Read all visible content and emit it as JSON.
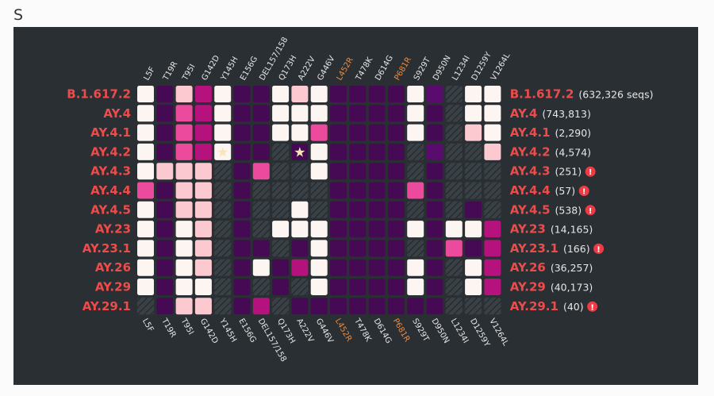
{
  "title": "S",
  "colors": {
    "panel": "#2a2f33",
    "cell_levels": [
      "#fdf5f1",
      "#fbc9cf",
      "#ec4a9d",
      "#b5127e",
      "#460a55",
      "#5a0c6e",
      "#333a3f"
    ],
    "row_label": "#ee4b4b",
    "highlight_mutation": "#f08a3c",
    "warning": "#ee3b45"
  },
  "chart_data": {
    "type": "heatmap",
    "description_levels": "0=very high (near white), 1=high (light pink), 2=medium (pink), 3=medium-low (magenta), 4=low (purple), 5=low alt (purple), 6=not observed (hatched)",
    "mutations": [
      "L5F",
      "T19R",
      "T95I",
      "G142D",
      "Y145H",
      "E156G",
      "DEL157/158",
      "Q173H",
      "A222V",
      "G446V",
      "L452R",
      "T478K",
      "D614G",
      "P681R",
      "S929T",
      "D950N",
      "L1234I",
      "D1259Y",
      "V1264L"
    ],
    "highlighted_mutations": [
      "L452R",
      "P681R"
    ],
    "lineages": [
      {
        "name": "B.1.617.2",
        "count": "(632,326 seqs)",
        "warning": false
      },
      {
        "name": "AY.4",
        "count": "(743,813)",
        "warning": false
      },
      {
        "name": "AY.4.1",
        "count": "(2,290)",
        "warning": false
      },
      {
        "name": "AY.4.2",
        "count": "(4,574)",
        "warning": false
      },
      {
        "name": "AY.4.3",
        "count": "(251)",
        "warning": true
      },
      {
        "name": "AY.4.4",
        "count": "(57)",
        "warning": true
      },
      {
        "name": "AY.4.5",
        "count": "(538)",
        "warning": true
      },
      {
        "name": "AY.23",
        "count": "(14,165)",
        "warning": false
      },
      {
        "name": "AY.23.1",
        "count": "(166)",
        "warning": true
      },
      {
        "name": "AY.26",
        "count": "(36,257)",
        "warning": false
      },
      {
        "name": "AY.29",
        "count": "(40,173)",
        "warning": false
      },
      {
        "name": "AY.29.1",
        "count": "(40)",
        "warning": true
      }
    ],
    "values": [
      [
        0,
        4,
        1,
        3,
        0,
        4,
        4,
        0,
        1,
        0,
        4,
        4,
        4,
        4,
        0,
        5,
        6,
        0,
        0
      ],
      [
        0,
        4,
        2,
        3,
        0,
        4,
        4,
        0,
        0,
        0,
        4,
        4,
        4,
        4,
        0,
        4,
        6,
        0,
        0
      ],
      [
        0,
        4,
        2,
        3,
        0,
        4,
        4,
        0,
        0,
        2,
        4,
        4,
        4,
        4,
        0,
        4,
        6,
        1,
        0
      ],
      [
        0,
        4,
        2,
        3,
        0,
        4,
        4,
        6,
        4,
        0,
        4,
        4,
        4,
        4,
        6,
        5,
        6,
        6,
        1
      ],
      [
        0,
        1,
        1,
        1,
        6,
        4,
        2,
        6,
        6,
        0,
        4,
        4,
        4,
        4,
        6,
        4,
        6,
        6,
        6
      ],
      [
        2,
        4,
        1,
        1,
        6,
        4,
        6,
        6,
        6,
        6,
        4,
        4,
        4,
        4,
        2,
        4,
        6,
        6,
        6
      ],
      [
        0,
        4,
        1,
        1,
        6,
        4,
        6,
        6,
        0,
        6,
        4,
        4,
        4,
        4,
        6,
        4,
        6,
        4,
        6
      ],
      [
        0,
        4,
        0,
        1,
        6,
        4,
        6,
        0,
        0,
        0,
        4,
        4,
        4,
        4,
        0,
        4,
        0,
        0,
        3
      ],
      [
        0,
        4,
        0,
        1,
        6,
        4,
        4,
        6,
        4,
        0,
        4,
        4,
        4,
        4,
        6,
        4,
        2,
        4,
        3
      ],
      [
        0,
        4,
        0,
        1,
        6,
        4,
        0,
        4,
        3,
        0,
        4,
        4,
        4,
        4,
        0,
        4,
        6,
        0,
        3
      ],
      [
        0,
        4,
        0,
        0,
        6,
        4,
        6,
        4,
        6,
        0,
        4,
        4,
        4,
        4,
        0,
        4,
        6,
        0,
        3
      ],
      [
        6,
        4,
        1,
        1,
        6,
        4,
        3,
        6,
        4,
        4,
        4,
        4,
        4,
        4,
        4,
        4,
        6,
        6,
        6
      ]
    ],
    "starred_cells": [
      {
        "lineage": "AY.4.2",
        "mutation": "Y145H"
      },
      {
        "lineage": "AY.4.2",
        "mutation": "A222V"
      }
    ]
  }
}
